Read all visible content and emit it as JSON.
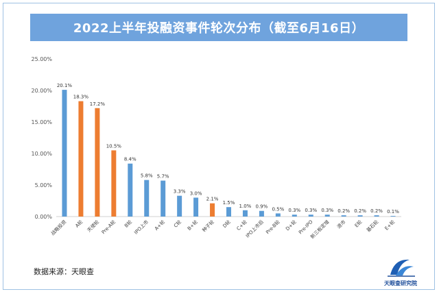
{
  "title": "2022上半年投融资事件轮次分布（截至6月16日）",
  "source": "数据来源：天眼查",
  "logo_text": "天眼查研究院",
  "colors": {
    "blue": "#5b9bd5",
    "orange": "#ed7d31",
    "title_bg": "#6fa3dd"
  },
  "chart_data": {
    "type": "bar",
    "categories": [
      "战略投资",
      "A轮",
      "天使轮",
      "Pre-A轮",
      "B轮",
      "IPO上市",
      "A+轮",
      "C轮",
      "B+轮",
      "种子轮",
      "D轮",
      "C+轮",
      "IPO上市后",
      "Pre-B轮",
      "D+轮",
      "Pre-IPO",
      "新三板定增",
      "退市",
      "E轮",
      "基石轮",
      "E+轮"
    ],
    "values": [
      20.1,
      18.3,
      17.2,
      10.5,
      8.4,
      5.8,
      5.7,
      3.3,
      3.0,
      2.1,
      1.5,
      1.0,
      0.9,
      0.5,
      0.3,
      0.3,
      0.3,
      0.2,
      0.2,
      0.2,
      0.1
    ],
    "value_labels": [
      "20.1%",
      "18.3%",
      "17.2%",
      "10.5%",
      "8.4%",
      "5.8%",
      "5.7%",
      "3.3%",
      "3.0%",
      "2.1%",
      "1.5%",
      "1.0%",
      "0.9%",
      "0.5%",
      "0.3%",
      "0.3%",
      "0.3%",
      "0.2%",
      "0.2%",
      "0.2%",
      "0.1%"
    ],
    "bar_colors": [
      "blue",
      "orange",
      "orange",
      "orange",
      "blue",
      "blue",
      "blue",
      "blue",
      "blue",
      "orange",
      "blue",
      "blue",
      "blue",
      "blue",
      "blue",
      "blue",
      "blue",
      "blue",
      "blue",
      "blue",
      "blue"
    ],
    "ylim": [
      0,
      25
    ],
    "yticks": [
      "0.00%",
      "5.00%",
      "10.00%",
      "15.00%",
      "20.00%",
      "25.00%"
    ],
    "ytick_values": [
      0,
      5,
      10,
      15,
      20,
      25
    ],
    "grid": false
  }
}
